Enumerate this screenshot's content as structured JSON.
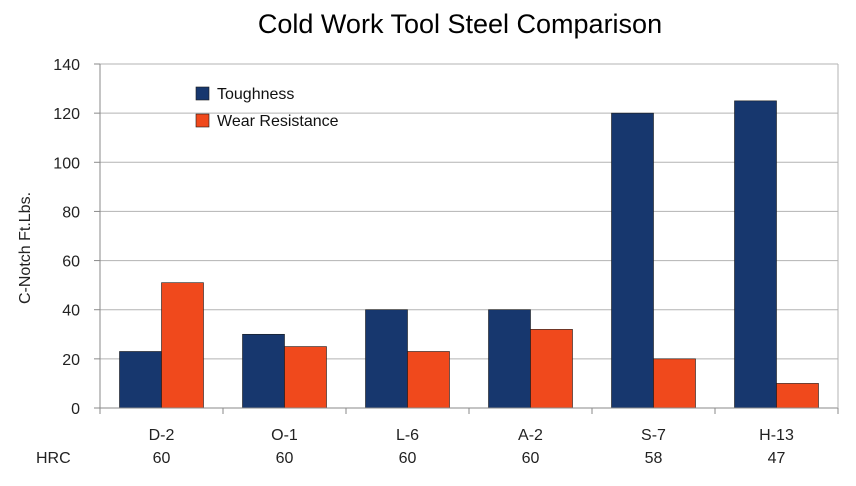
{
  "chart_data": {
    "type": "bar",
    "title": "Cold Work Tool Steel Comparison",
    "ylabel": "C-Notch Ft.Lbs.",
    "xlabel": "",
    "ylim": [
      0,
      140
    ],
    "yticks": [
      0,
      20,
      40,
      60,
      80,
      100,
      120,
      140
    ],
    "categories": [
      "D-2",
      "O-1",
      "L-6",
      "A-2",
      "S-7",
      "H-13"
    ],
    "row_label": "HRC",
    "hrc": [
      "60",
      "60",
      "60",
      "60",
      "58",
      "47"
    ],
    "series": [
      {
        "name": "Toughness",
        "color": "#17376e",
        "values": [
          23,
          30,
          40,
          40,
          120,
          125
        ]
      },
      {
        "name": "Wear Resistance",
        "color": "#f0491c",
        "values": [
          51,
          25,
          23,
          32,
          20,
          10
        ]
      }
    ],
    "grid": true,
    "legend_position": "top-left"
  }
}
